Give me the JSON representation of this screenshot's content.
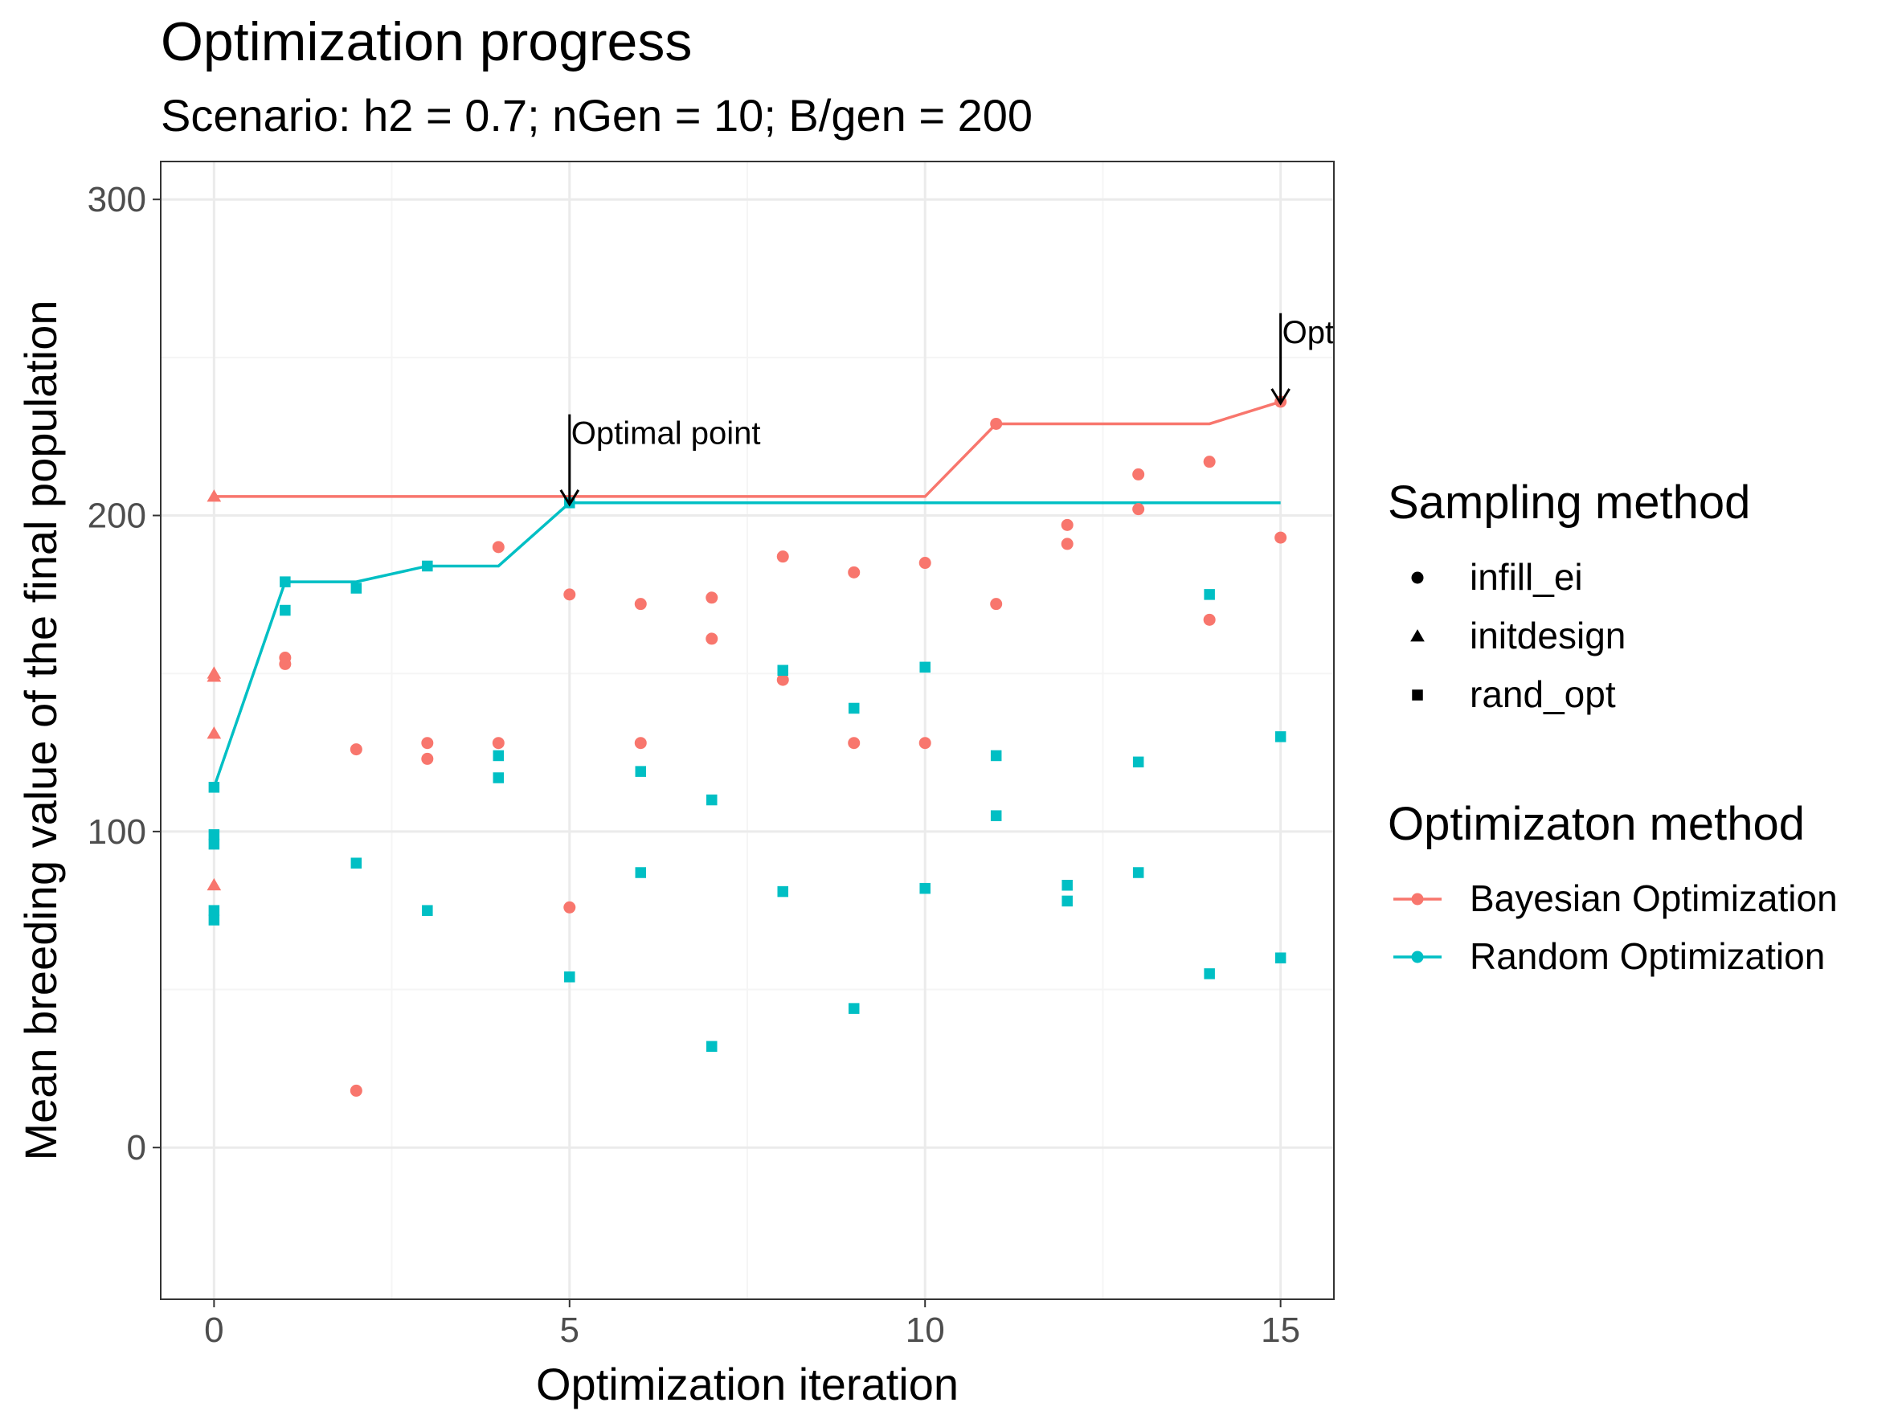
{
  "chart_data": {
    "type": "scatter",
    "title": "Optimization progress",
    "subtitle": "Scenario: h2 = 0.7; nGen = 10; B/gen = 200",
    "xlabel": "Optimization iteration",
    "ylabel": "Mean breeding value of the final population",
    "xlim": [
      -0.75,
      15.75
    ],
    "ylim": [
      -48,
      312
    ],
    "x_ticks": [
      0,
      5,
      10,
      15
    ],
    "y_ticks": [
      0,
      100,
      200,
      300
    ],
    "x_tick_labels": [
      "0",
      "5",
      "10",
      "15"
    ],
    "y_tick_labels": [
      "0",
      "100",
      "200",
      "300"
    ],
    "grid": true,
    "legend_position": "right",
    "colors": {
      "bayesian": "#F8766D",
      "random": "#00BFC4",
      "panel_border": "#333333",
      "grid_major": "#EBEBEB",
      "grid_minor": "#F5F5F5",
      "text": "#000000",
      "tick_text": "#4D4D4D"
    },
    "legends": [
      {
        "title": "Sampling method",
        "items": [
          {
            "label": "infill_ei",
            "shape": "circle"
          },
          {
            "label": "initdesign",
            "shape": "triangle"
          },
          {
            "label": "rand_opt",
            "shape": "square"
          }
        ]
      },
      {
        "title": "Optimizaton method",
        "items": [
          {
            "label": "Bayesian Optimization",
            "color_key": "bayesian"
          },
          {
            "label": "Random Optimization",
            "color_key": "random"
          }
        ]
      }
    ],
    "series": [
      {
        "name": "Bayesian Optimization",
        "color_key": "bayesian",
        "line": [
          [
            0,
            206
          ],
          [
            10,
            206
          ],
          [
            11,
            229
          ],
          [
            14,
            229
          ],
          [
            15,
            236
          ]
        ],
        "points": [
          {
            "x": 0,
            "y": 206,
            "shape": "triangle"
          },
          {
            "x": 0,
            "y": 150,
            "shape": "triangle"
          },
          {
            "x": 0,
            "y": 149,
            "shape": "triangle"
          },
          {
            "x": 0,
            "y": 131,
            "shape": "triangle"
          },
          {
            "x": 0,
            "y": 83,
            "shape": "triangle"
          },
          {
            "x": 1,
            "y": 155,
            "shape": "circle"
          },
          {
            "x": 1,
            "y": 153,
            "shape": "circle"
          },
          {
            "x": 2,
            "y": 126,
            "shape": "circle"
          },
          {
            "x": 2,
            "y": 18,
            "shape": "circle"
          },
          {
            "x": 3,
            "y": 128,
            "shape": "circle"
          },
          {
            "x": 3,
            "y": 123,
            "shape": "circle"
          },
          {
            "x": 4,
            "y": 190,
            "shape": "circle"
          },
          {
            "x": 4,
            "y": 128,
            "shape": "circle"
          },
          {
            "x": 5,
            "y": 175,
            "shape": "circle"
          },
          {
            "x": 5,
            "y": 76,
            "shape": "circle"
          },
          {
            "x": 6,
            "y": 172,
            "shape": "circle"
          },
          {
            "x": 6,
            "y": 128,
            "shape": "circle"
          },
          {
            "x": 7,
            "y": 174,
            "shape": "circle"
          },
          {
            "x": 7,
            "y": 161,
            "shape": "circle"
          },
          {
            "x": 8,
            "y": 187,
            "shape": "circle"
          },
          {
            "x": 8,
            "y": 148,
            "shape": "circle"
          },
          {
            "x": 9,
            "y": 182,
            "shape": "circle"
          },
          {
            "x": 9,
            "y": 128,
            "shape": "circle"
          },
          {
            "x": 10,
            "y": 185,
            "shape": "circle"
          },
          {
            "x": 10,
            "y": 128,
            "shape": "circle"
          },
          {
            "x": 11,
            "y": 229,
            "shape": "circle"
          },
          {
            "x": 11,
            "y": 172,
            "shape": "circle"
          },
          {
            "x": 12,
            "y": 197,
            "shape": "circle"
          },
          {
            "x": 12,
            "y": 191,
            "shape": "circle"
          },
          {
            "x": 13,
            "y": 213,
            "shape": "circle"
          },
          {
            "x": 13,
            "y": 202,
            "shape": "circle"
          },
          {
            "x": 14,
            "y": 217,
            "shape": "circle"
          },
          {
            "x": 14,
            "y": 167,
            "shape": "circle"
          },
          {
            "x": 15,
            "y": 236,
            "shape": "circle"
          },
          {
            "x": 15,
            "y": 193,
            "shape": "circle"
          }
        ]
      },
      {
        "name": "Random Optimization",
        "color_key": "random",
        "line": [
          [
            0,
            114
          ],
          [
            1,
            179
          ],
          [
            2,
            179
          ],
          [
            3,
            184
          ],
          [
            4,
            184
          ],
          [
            5,
            204
          ],
          [
            15,
            204
          ]
        ],
        "points": [
          {
            "x": 0,
            "y": 114,
            "shape": "square"
          },
          {
            "x": 0,
            "y": 99,
            "shape": "square"
          },
          {
            "x": 0,
            "y": 96,
            "shape": "square"
          },
          {
            "x": 0,
            "y": 75,
            "shape": "square"
          },
          {
            "x": 0,
            "y": 72,
            "shape": "square"
          },
          {
            "x": 1,
            "y": 179,
            "shape": "square"
          },
          {
            "x": 1,
            "y": 170,
            "shape": "square"
          },
          {
            "x": 2,
            "y": 177,
            "shape": "square"
          },
          {
            "x": 2,
            "y": 90,
            "shape": "square"
          },
          {
            "x": 3,
            "y": 184,
            "shape": "square"
          },
          {
            "x": 3,
            "y": 75,
            "shape": "square"
          },
          {
            "x": 4,
            "y": 124,
            "shape": "square"
          },
          {
            "x": 4,
            "y": 117,
            "shape": "square"
          },
          {
            "x": 5,
            "y": 204,
            "shape": "square"
          },
          {
            "x": 5,
            "y": 54,
            "shape": "square"
          },
          {
            "x": 6,
            "y": 119,
            "shape": "square"
          },
          {
            "x": 6,
            "y": 87,
            "shape": "square"
          },
          {
            "x": 7,
            "y": 110,
            "shape": "square"
          },
          {
            "x": 7,
            "y": 32,
            "shape": "square"
          },
          {
            "x": 8,
            "y": 151,
            "shape": "square"
          },
          {
            "x": 8,
            "y": 81,
            "shape": "square"
          },
          {
            "x": 9,
            "y": 139,
            "shape": "square"
          },
          {
            "x": 9,
            "y": 44,
            "shape": "square"
          },
          {
            "x": 10,
            "y": 152,
            "shape": "square"
          },
          {
            "x": 10,
            "y": 82,
            "shape": "square"
          },
          {
            "x": 11,
            "y": 124,
            "shape": "square"
          },
          {
            "x": 11,
            "y": 105,
            "shape": "square"
          },
          {
            "x": 12,
            "y": 83,
            "shape": "square"
          },
          {
            "x": 12,
            "y": 78,
            "shape": "square"
          },
          {
            "x": 13,
            "y": 122,
            "shape": "square"
          },
          {
            "x": 13,
            "y": 87,
            "shape": "square"
          },
          {
            "x": 14,
            "y": 175,
            "shape": "square"
          },
          {
            "x": 14,
            "y": 55,
            "shape": "square"
          },
          {
            "x": 15,
            "y": 130,
            "shape": "square"
          },
          {
            "x": 15,
            "y": 60,
            "shape": "square"
          }
        ]
      }
    ],
    "annotations": [
      {
        "text": "Optimal point",
        "x": 5,
        "y": 204,
        "label_y": 232
      },
      {
        "text": "Opt",
        "x": 15,
        "y": 236,
        "label_y": 264
      }
    ]
  }
}
